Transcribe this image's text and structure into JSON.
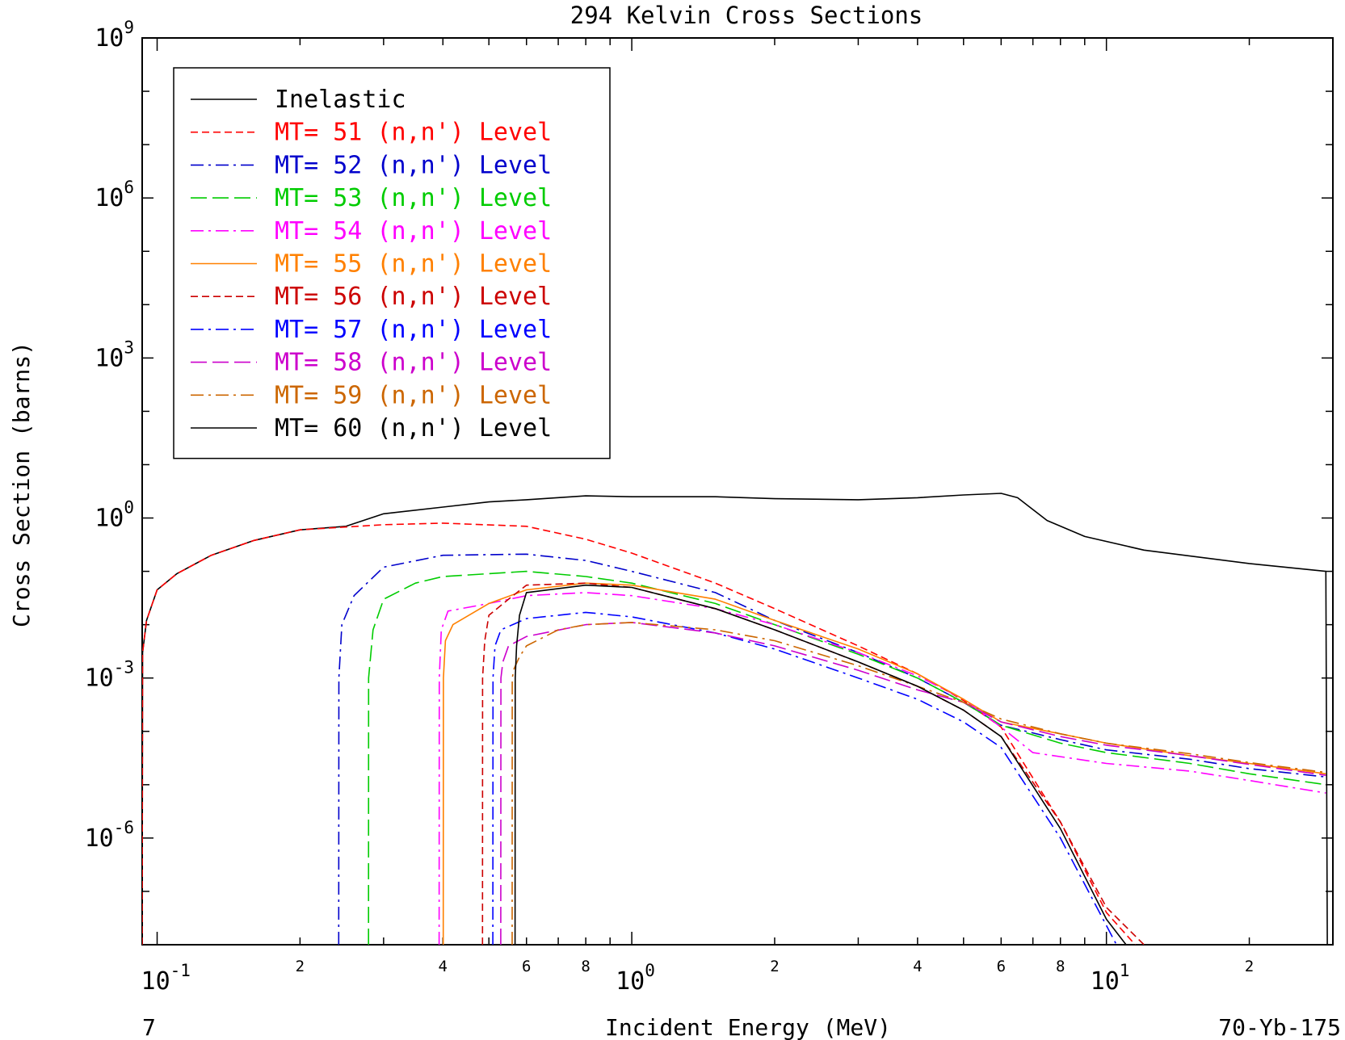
{
  "chart_data": {
    "type": "line",
    "title": "294 Kelvin Cross Sections",
    "xlabel": "Incident Energy (MeV)",
    "ylabel": "Cross Section (barns)",
    "x_scale": "log",
    "y_scale": "log",
    "xlim": [
      0.093,
      30
    ],
    "ylim": [
      1e-08,
      1000000000.0
    ],
    "corner_left": "7",
    "corner_right": "70-Yb-175",
    "x_major_ticks": [
      {
        "value": 0.1,
        "base": "10",
        "exp": "-1"
      },
      {
        "value": 1,
        "base": "10",
        "exp": "0"
      },
      {
        "value": 10,
        "base": "10",
        "exp": "1"
      }
    ],
    "x_minor_labels": [
      {
        "value": 0.2,
        "label": "2"
      },
      {
        "value": 0.4,
        "label": "4"
      },
      {
        "value": 0.6,
        "label": "6"
      },
      {
        "value": 0.8,
        "label": "8"
      },
      {
        "value": 2,
        "label": "2"
      },
      {
        "value": 4,
        "label": "4"
      },
      {
        "value": 6,
        "label": "6"
      },
      {
        "value": 8,
        "label": "8"
      },
      {
        "value": 20,
        "label": "2"
      }
    ],
    "y_major_ticks": [
      {
        "value": 1000000000.0,
        "base": "10",
        "exp": "9"
      },
      {
        "value": 1000000.0,
        "base": "10",
        "exp": "6"
      },
      {
        "value": 1000.0,
        "base": "10",
        "exp": "3"
      },
      {
        "value": 1,
        "base": "10",
        "exp": "0"
      },
      {
        "value": 0.001,
        "base": "10",
        "exp": "-3"
      },
      {
        "value": 1e-06,
        "base": "10",
        "exp": "-6"
      }
    ],
    "legend_position": "top-left",
    "series": [
      {
        "name": "Inelastic",
        "color": "#000000",
        "dash": "solid",
        "points": [
          [
            0.093,
            1e-08
          ],
          [
            0.0932,
            0.003
          ],
          [
            0.095,
            0.012
          ],
          [
            0.1,
            0.045
          ],
          [
            0.11,
            0.09
          ],
          [
            0.13,
            0.2
          ],
          [
            0.16,
            0.38
          ],
          [
            0.2,
            0.6
          ],
          [
            0.25,
            0.7
          ],
          [
            0.3,
            1.2
          ],
          [
            0.4,
            1.6
          ],
          [
            0.5,
            2.0
          ],
          [
            0.6,
            2.2
          ],
          [
            0.8,
            2.6
          ],
          [
            1.0,
            2.5
          ],
          [
            1.5,
            2.5
          ],
          [
            2,
            2.3
          ],
          [
            3,
            2.2
          ],
          [
            4,
            2.4
          ],
          [
            5,
            2.7
          ],
          [
            6,
            2.9
          ],
          [
            6.5,
            2.4
          ],
          [
            7.5,
            0.9
          ],
          [
            9,
            0.45
          ],
          [
            12,
            0.25
          ],
          [
            20,
            0.14
          ],
          [
            29,
            0.1
          ],
          [
            29.2,
            1e-08
          ]
        ]
      },
      {
        "name": "MT= 51 (n,n') Level",
        "color": "#ff0000",
        "dash": "9,5",
        "points": [
          [
            0.093,
            1e-08
          ],
          [
            0.0932,
            0.003
          ],
          [
            0.095,
            0.012
          ],
          [
            0.1,
            0.045
          ],
          [
            0.11,
            0.09
          ],
          [
            0.13,
            0.2
          ],
          [
            0.16,
            0.38
          ],
          [
            0.2,
            0.6
          ],
          [
            0.3,
            0.75
          ],
          [
            0.4,
            0.8
          ],
          [
            0.6,
            0.7
          ],
          [
            0.8,
            0.4
          ],
          [
            1,
            0.22
          ],
          [
            1.5,
            0.06
          ],
          [
            2,
            0.02
          ],
          [
            3,
            0.004
          ],
          [
            4,
            0.0012
          ],
          [
            5,
            0.00038
          ],
          [
            6,
            0.00012
          ],
          [
            8,
            2e-06
          ],
          [
            10,
            4e-08
          ],
          [
            11.5,
            1e-08
          ]
        ]
      },
      {
        "name": "MT= 52 (n,n') Level",
        "color": "#0000cc",
        "dash": "16,6,3,6",
        "points": [
          [
            0.2413,
            1e-08
          ],
          [
            0.2415,
            0.001
          ],
          [
            0.245,
            0.01
          ],
          [
            0.26,
            0.035
          ],
          [
            0.3,
            0.12
          ],
          [
            0.4,
            0.2
          ],
          [
            0.6,
            0.21
          ],
          [
            0.8,
            0.16
          ],
          [
            1,
            0.1
          ],
          [
            1.5,
            0.04
          ],
          [
            2,
            0.012
          ],
          [
            3,
            0.003
          ],
          [
            4,
            0.001
          ],
          [
            5,
            0.00035
          ],
          [
            6,
            0.00013
          ],
          [
            8,
            7e-05
          ],
          [
            10,
            4.5e-05
          ],
          [
            15,
            3e-05
          ],
          [
            20,
            2e-05
          ],
          [
            29,
            1.4e-05
          ]
        ]
      },
      {
        "name": "MT= 53 (n,n') Level",
        "color": "#00cc00",
        "dash": "20,7",
        "points": [
          [
            0.2788,
            1e-08
          ],
          [
            0.279,
            0.001
          ],
          [
            0.285,
            0.008
          ],
          [
            0.3,
            0.03
          ],
          [
            0.35,
            0.06
          ],
          [
            0.4,
            0.08
          ],
          [
            0.6,
            0.1
          ],
          [
            0.8,
            0.08
          ],
          [
            1,
            0.06
          ],
          [
            1.5,
            0.025
          ],
          [
            2,
            0.01
          ],
          [
            3,
            0.0028
          ],
          [
            4,
            0.001
          ],
          [
            5,
            0.00035
          ],
          [
            6,
            0.00013
          ],
          [
            8,
            6e-05
          ],
          [
            10,
            4e-05
          ],
          [
            15,
            2.5e-05
          ],
          [
            20,
            1.6e-05
          ],
          [
            29,
            1e-05
          ]
        ]
      },
      {
        "name": "MT= 54 (n,n') Level",
        "color": "#ff00ff",
        "dash": "16,6,3,6",
        "points": [
          [
            0.3927,
            1e-08
          ],
          [
            0.393,
            0.001
          ],
          [
            0.397,
            0.008
          ],
          [
            0.41,
            0.018
          ],
          [
            0.5,
            0.025
          ],
          [
            0.6,
            0.035
          ],
          [
            0.8,
            0.04
          ],
          [
            1,
            0.035
          ],
          [
            1.5,
            0.02
          ],
          [
            2,
            0.01
          ],
          [
            3,
            0.003
          ],
          [
            4,
            0.0011
          ],
          [
            5,
            0.0004
          ],
          [
            6,
            0.00012
          ],
          [
            7,
            4e-05
          ],
          [
            10,
            2.5e-05
          ],
          [
            15,
            1.8e-05
          ],
          [
            20,
            1.2e-05
          ],
          [
            29,
            7e-06
          ]
        ]
      },
      {
        "name": "MT= 55 (n,n') Level",
        "color": "#ff8000",
        "dash": "solid",
        "points": [
          [
            0.4007,
            1e-08
          ],
          [
            0.401,
            0.001
          ],
          [
            0.405,
            0.005
          ],
          [
            0.42,
            0.01
          ],
          [
            0.5,
            0.025
          ],
          [
            0.6,
            0.045
          ],
          [
            0.8,
            0.06
          ],
          [
            1,
            0.055
          ],
          [
            1.5,
            0.03
          ],
          [
            2,
            0.012
          ],
          [
            3,
            0.0035
          ],
          [
            4,
            0.0012
          ],
          [
            5,
            0.0004
          ],
          [
            6,
            0.00015
          ],
          [
            8,
            9e-05
          ],
          [
            10,
            6e-05
          ],
          [
            15,
            3.5e-05
          ],
          [
            20,
            2.5e-05
          ],
          [
            29,
            1.6e-05
          ]
        ]
      },
      {
        "name": "MT= 56 (n,n') Level",
        "color": "#cc0000",
        "dash": "9,5",
        "points": [
          [
            0.4847,
            1e-08
          ],
          [
            0.485,
            0.001
          ],
          [
            0.49,
            0.005
          ],
          [
            0.5,
            0.015
          ],
          [
            0.55,
            0.03
          ],
          [
            0.6,
            0.055
          ],
          [
            0.8,
            0.06
          ],
          [
            1,
            0.05
          ],
          [
            1.5,
            0.02
          ],
          [
            2,
            0.008
          ],
          [
            3,
            0.002
          ],
          [
            4,
            0.0007
          ],
          [
            5,
            0.00025
          ],
          [
            6,
            8e-05
          ],
          [
            8,
            2e-06
          ],
          [
            10,
            5e-08
          ],
          [
            12,
            1e-08
          ]
        ]
      },
      {
        "name": "MT= 57 (n,n') Level",
        "color": "#0000ff",
        "dash": "16,6,3,6",
        "points": [
          [
            0.5097,
            1e-08
          ],
          [
            0.51,
            0.001
          ],
          [
            0.515,
            0.004
          ],
          [
            0.53,
            0.008
          ],
          [
            0.6,
            0.013
          ],
          [
            0.8,
            0.017
          ],
          [
            1,
            0.014
          ],
          [
            1.5,
            0.007
          ],
          [
            2,
            0.0035
          ],
          [
            3,
            0.001
          ],
          [
            4,
            0.0004
          ],
          [
            5,
            0.00015
          ],
          [
            6,
            5e-05
          ],
          [
            8,
            1e-06
          ],
          [
            10.5,
            1e-08
          ]
        ]
      },
      {
        "name": "MT= 58 (n,n') Level",
        "color": "#cc00cc",
        "dash": "20,7",
        "points": [
          [
            0.5297,
            1e-08
          ],
          [
            0.53,
            0.001
          ],
          [
            0.535,
            0.002
          ],
          [
            0.55,
            0.004
          ],
          [
            0.6,
            0.006
          ],
          [
            0.8,
            0.01
          ],
          [
            1,
            0.011
          ],
          [
            1.5,
            0.007
          ],
          [
            2,
            0.004
          ],
          [
            3,
            0.0014
          ],
          [
            4,
            0.0006
          ],
          [
            5,
            0.00035
          ],
          [
            6,
            0.00015
          ],
          [
            8,
            8e-05
          ],
          [
            10,
            5.5e-05
          ],
          [
            15,
            3.5e-05
          ],
          [
            20,
            2.4e-05
          ],
          [
            29,
            1.5e-05
          ]
        ]
      },
      {
        "name": "MT= 59 (n,n') Level",
        "color": "#cc6600",
        "dash": "16,6,3,6",
        "points": [
          [
            0.5597,
            1e-08
          ],
          [
            0.56,
            0.001
          ],
          [
            0.565,
            0.0015
          ],
          [
            0.58,
            0.0025
          ],
          [
            0.6,
            0.004
          ],
          [
            0.7,
            0.008
          ],
          [
            0.8,
            0.01
          ],
          [
            1,
            0.011
          ],
          [
            1.5,
            0.008
          ],
          [
            2,
            0.005
          ],
          [
            3,
            0.0017
          ],
          [
            4,
            0.0007
          ],
          [
            5,
            0.00035
          ],
          [
            6,
            0.00017
          ],
          [
            8,
            9e-05
          ],
          [
            10,
            6e-05
          ],
          [
            15,
            3.8e-05
          ],
          [
            20,
            2.6e-05
          ],
          [
            29,
            1.7e-05
          ]
        ]
      },
      {
        "name": "MT= 60 (n,n') Level",
        "color": "#000000",
        "dash": "solid",
        "points": [
          [
            0.5677,
            1e-08
          ],
          [
            0.568,
            0.001
          ],
          [
            0.572,
            0.004
          ],
          [
            0.58,
            0.015
          ],
          [
            0.6,
            0.04
          ],
          [
            0.8,
            0.055
          ],
          [
            1,
            0.05
          ],
          [
            1.5,
            0.02
          ],
          [
            2,
            0.008
          ],
          [
            3,
            0.002
          ],
          [
            4,
            0.0007
          ],
          [
            5,
            0.00025
          ],
          [
            6,
            8e-05
          ],
          [
            8,
            1.5e-06
          ],
          [
            10,
            3e-08
          ],
          [
            11,
            1e-08
          ]
        ]
      }
    ]
  }
}
